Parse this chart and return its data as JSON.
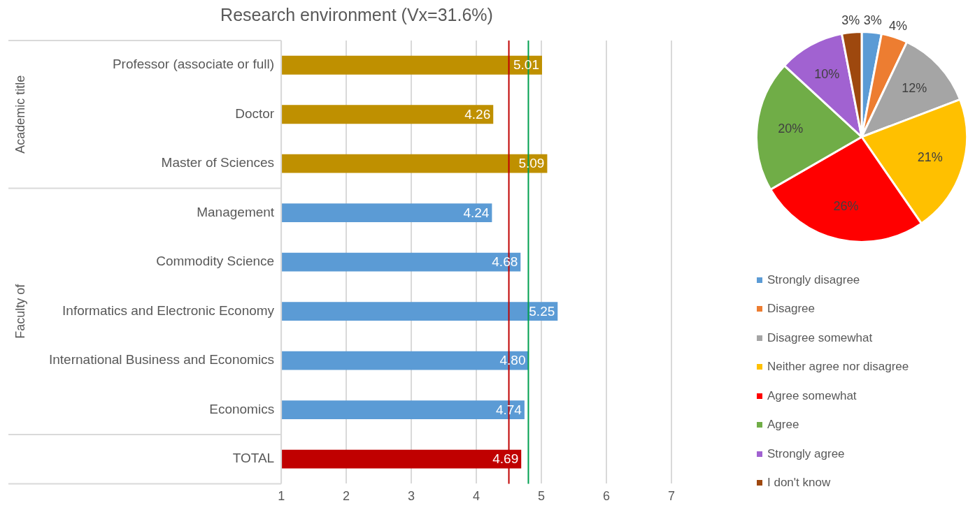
{
  "chart_data": [
    {
      "type": "bar",
      "title": "Research environment (Vx=31.6%)",
      "orientation": "horizontal",
      "categories": [
        "Professor (associate or full)",
        "Doctor",
        "Master of Sciences",
        "Management",
        "Commodity Science",
        "Informatics and Electronic Economy",
        "International Business and Economics",
        "Economics",
        "TOTAL"
      ],
      "values": [
        5.01,
        4.26,
        5.09,
        4.24,
        4.68,
        5.25,
        4.8,
        4.74,
        4.69
      ],
      "value_labels": [
        "5.01",
        "4.26",
        "5.09",
        "4.24",
        "4.68",
        "5.25",
        "4.80",
        "4.74",
        "4.69"
      ],
      "colors": [
        "#bf9000",
        "#bf9000",
        "#bf9000",
        "#5b9bd5",
        "#5b9bd5",
        "#5b9bd5",
        "#5b9bd5",
        "#5b9bd5",
        "#c00000"
      ],
      "xlim": [
        1,
        7
      ],
      "xticks": [
        1,
        2,
        3,
        4,
        5,
        6,
        7
      ],
      "grid": "x",
      "ref_lines": [
        {
          "axis": "x",
          "value": 4.5,
          "color": "#c00000"
        },
        {
          "axis": "x",
          "value": 4.8,
          "color": "#00a050"
        }
      ],
      "annotations": [
        "Academic title",
        "Faculty of"
      ]
    },
    {
      "type": "pie",
      "categories": [
        "Strongly disagree",
        "Disagree",
        "Disagree somewhat",
        "Neither agree nor disagree",
        "Agree somewhat",
        "Agree",
        "Strongly agree",
        "I don't know"
      ],
      "values": [
        3,
        4,
        12,
        21,
        26,
        20,
        10,
        3
      ],
      "value_labels": [
        "3%",
        "4%",
        "12%",
        "21%",
        "26%",
        "20%",
        "10%",
        "3%"
      ],
      "colors": [
        "#5b9bd5",
        "#ed7d31",
        "#a5a5a5",
        "#ffc000",
        "#ff0000",
        "#70ad47",
        "#a162d1",
        "#9e480e"
      ],
      "legend": "bottom"
    }
  ]
}
